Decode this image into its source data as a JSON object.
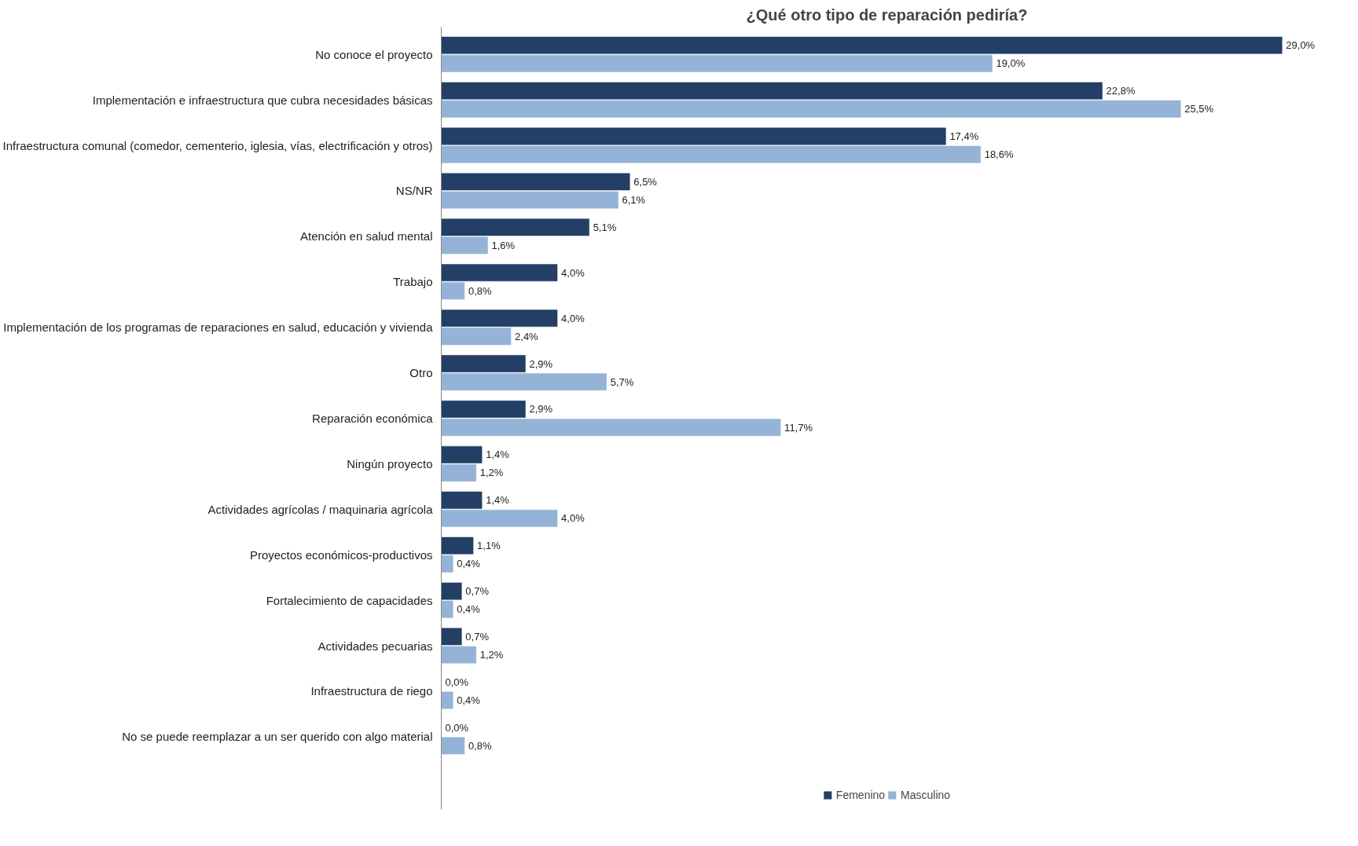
{
  "chart_data": {
    "type": "bar",
    "orientation": "horizontal",
    "title": "¿Qué otro tipo de reparación pediría?",
    "categories": [
      "No conoce el proyecto",
      "Implementación e infraestructura que cubra necesidades básicas",
      "Infraestructura comunal (comedor, cementerio, iglesia, vías, electrificación y otros)",
      "NS/NR",
      "Atención en salud mental",
      "Trabajo",
      "Implementación de los programas de reparaciones en salud, educación y vivienda",
      "Otro",
      "Reparación económica",
      "Ningún proyecto",
      "Actividades agrícolas / maquinaria agrícola",
      "Proyectos económicos-productivos",
      "Fortalecimiento de capacidades",
      "Actividades pecuarias",
      "Infraestructura de riego",
      "No se puede reemplazar a un ser querido con algo material"
    ],
    "series": [
      {
        "name": "Femenino",
        "color": "#243f66",
        "values": [
          29.0,
          22.8,
          17.4,
          6.5,
          5.1,
          4.0,
          4.0,
          2.9,
          2.9,
          1.4,
          1.4,
          1.1,
          0.7,
          0.7,
          0.0,
          0.0
        ],
        "value_labels": [
          "29,0%",
          "22,8%",
          "17,4%",
          "6,5%",
          "5,1%",
          "4,0%",
          "4,0%",
          "2,9%",
          "2,9%",
          "1,4%",
          "1,4%",
          "1,1%",
          "0,7%",
          "0,7%",
          "0,0%",
          "0,0%"
        ]
      },
      {
        "name": "Masculino",
        "color": "#95b3d7",
        "values": [
          19.0,
          25.5,
          18.6,
          6.1,
          1.6,
          0.8,
          2.4,
          5.7,
          11.7,
          1.2,
          4.0,
          0.4,
          0.4,
          1.2,
          0.4,
          0.8
        ],
        "value_labels": [
          "19,0%",
          "25,5%",
          "18,6%",
          "6,1%",
          "1,6%",
          "0,8%",
          "2,4%",
          "5,7%",
          "11,7%",
          "1,2%",
          "4,0%",
          "0,4%",
          "0,4%",
          "1,2%",
          "0,4%",
          "0,8%"
        ]
      }
    ],
    "legend": "bottom",
    "grid": false,
    "tick_labels": "y"
  }
}
